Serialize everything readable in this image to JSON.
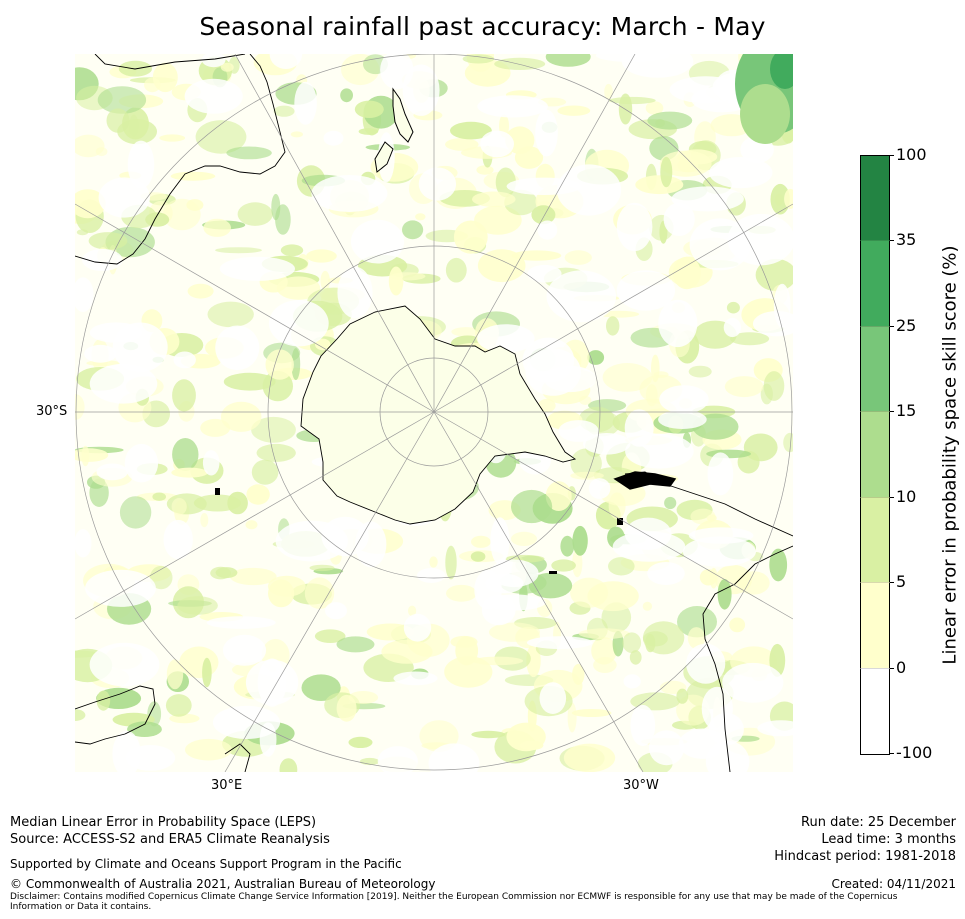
{
  "title": "Seasonal rainfall past accuracy: March - May",
  "map": {
    "lat_labels": [
      "30°S"
    ],
    "lon_labels": [
      "30°E",
      "30°W"
    ]
  },
  "colorbar": {
    "label": "Linear error in probability space skill score (%)",
    "ticks": [
      "100",
      "35",
      "25",
      "15",
      "10",
      "5",
      "0",
      "-100"
    ],
    "colors": [
      "#238443",
      "#41ab5d",
      "#78c679",
      "#addd8e",
      "#d9f0a3",
      "#ffffcc",
      "#ffffff"
    ]
  },
  "footer": {
    "left1": "Median Linear Error in Probability Space (LEPS)",
    "left2": "Source: ACCESS-S2 and ERA5 Climate Reanalysis",
    "supported": "Supported by Climate and Oceans Support Program in the Pacific",
    "copyright": "© Commonwealth of Australia 2021, Australian Bureau of Meteorology",
    "run_date": "Run date: 25 December",
    "lead_time": "Lead time: 3 months",
    "hindcast": "Hindcast period: 1981-2018",
    "created": "Created: 04/11/2021",
    "disclaimer": "Disclaimer: Contains modified Copernicus Climate Change Service Information [2019]. Neither the European Commission nor ECMWF is responsible for any use that may be made of the Copernicus Information or Data it contains."
  }
}
